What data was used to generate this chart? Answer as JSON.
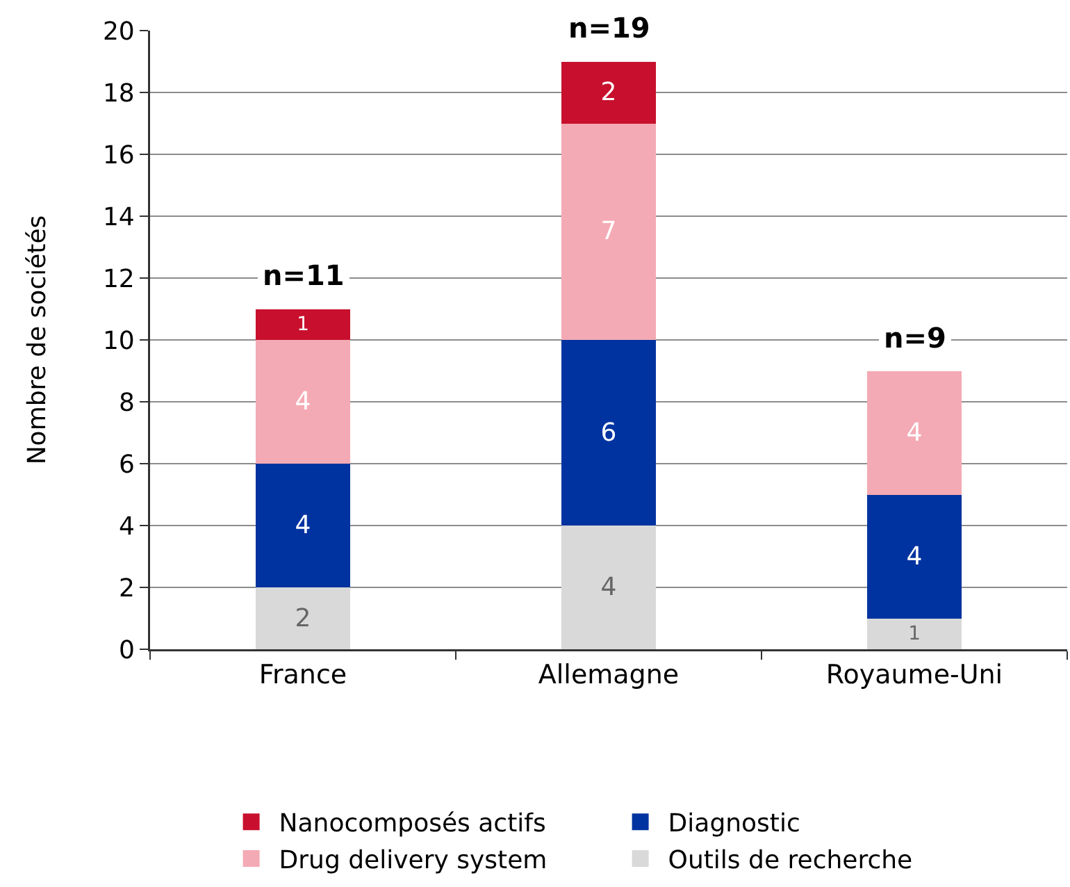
{
  "chart_data": {
    "type": "bar",
    "stacked": true,
    "ylabel": "Nombre de sociétés",
    "categories": [
      "France",
      "Allemagne",
      "Royaume-Uni"
    ],
    "series": [
      {
        "name": "Outils de recherche",
        "color": "#d9d9d9",
        "values": [
          2,
          4,
          1
        ],
        "value_labels": [
          "2",
          "4",
          "1"
        ]
      },
      {
        "name": "Diagnostic",
        "color": "#0033a0",
        "values": [
          4,
          6,
          4
        ],
        "value_labels": [
          "4",
          "6",
          "4"
        ]
      },
      {
        "name": "Drug delivery system",
        "color": "#f4aab4",
        "values": [
          4,
          7,
          4
        ],
        "value_labels": [
          "4",
          "7",
          "4"
        ]
      },
      {
        "name": "Nanocomposés actifs",
        "color": "#c8102e",
        "values": [
          1,
          2,
          0
        ],
        "value_labels": [
          "1",
          "2",
          null
        ]
      }
    ],
    "totals": [
      "n=11",
      "n=19",
      "n=9"
    ],
    "ylim": [
      0,
      20
    ],
    "yticks": [
      0,
      2,
      4,
      6,
      8,
      10,
      12,
      14,
      16,
      18,
      20
    ],
    "grid": "y",
    "legend": "bottom"
  }
}
